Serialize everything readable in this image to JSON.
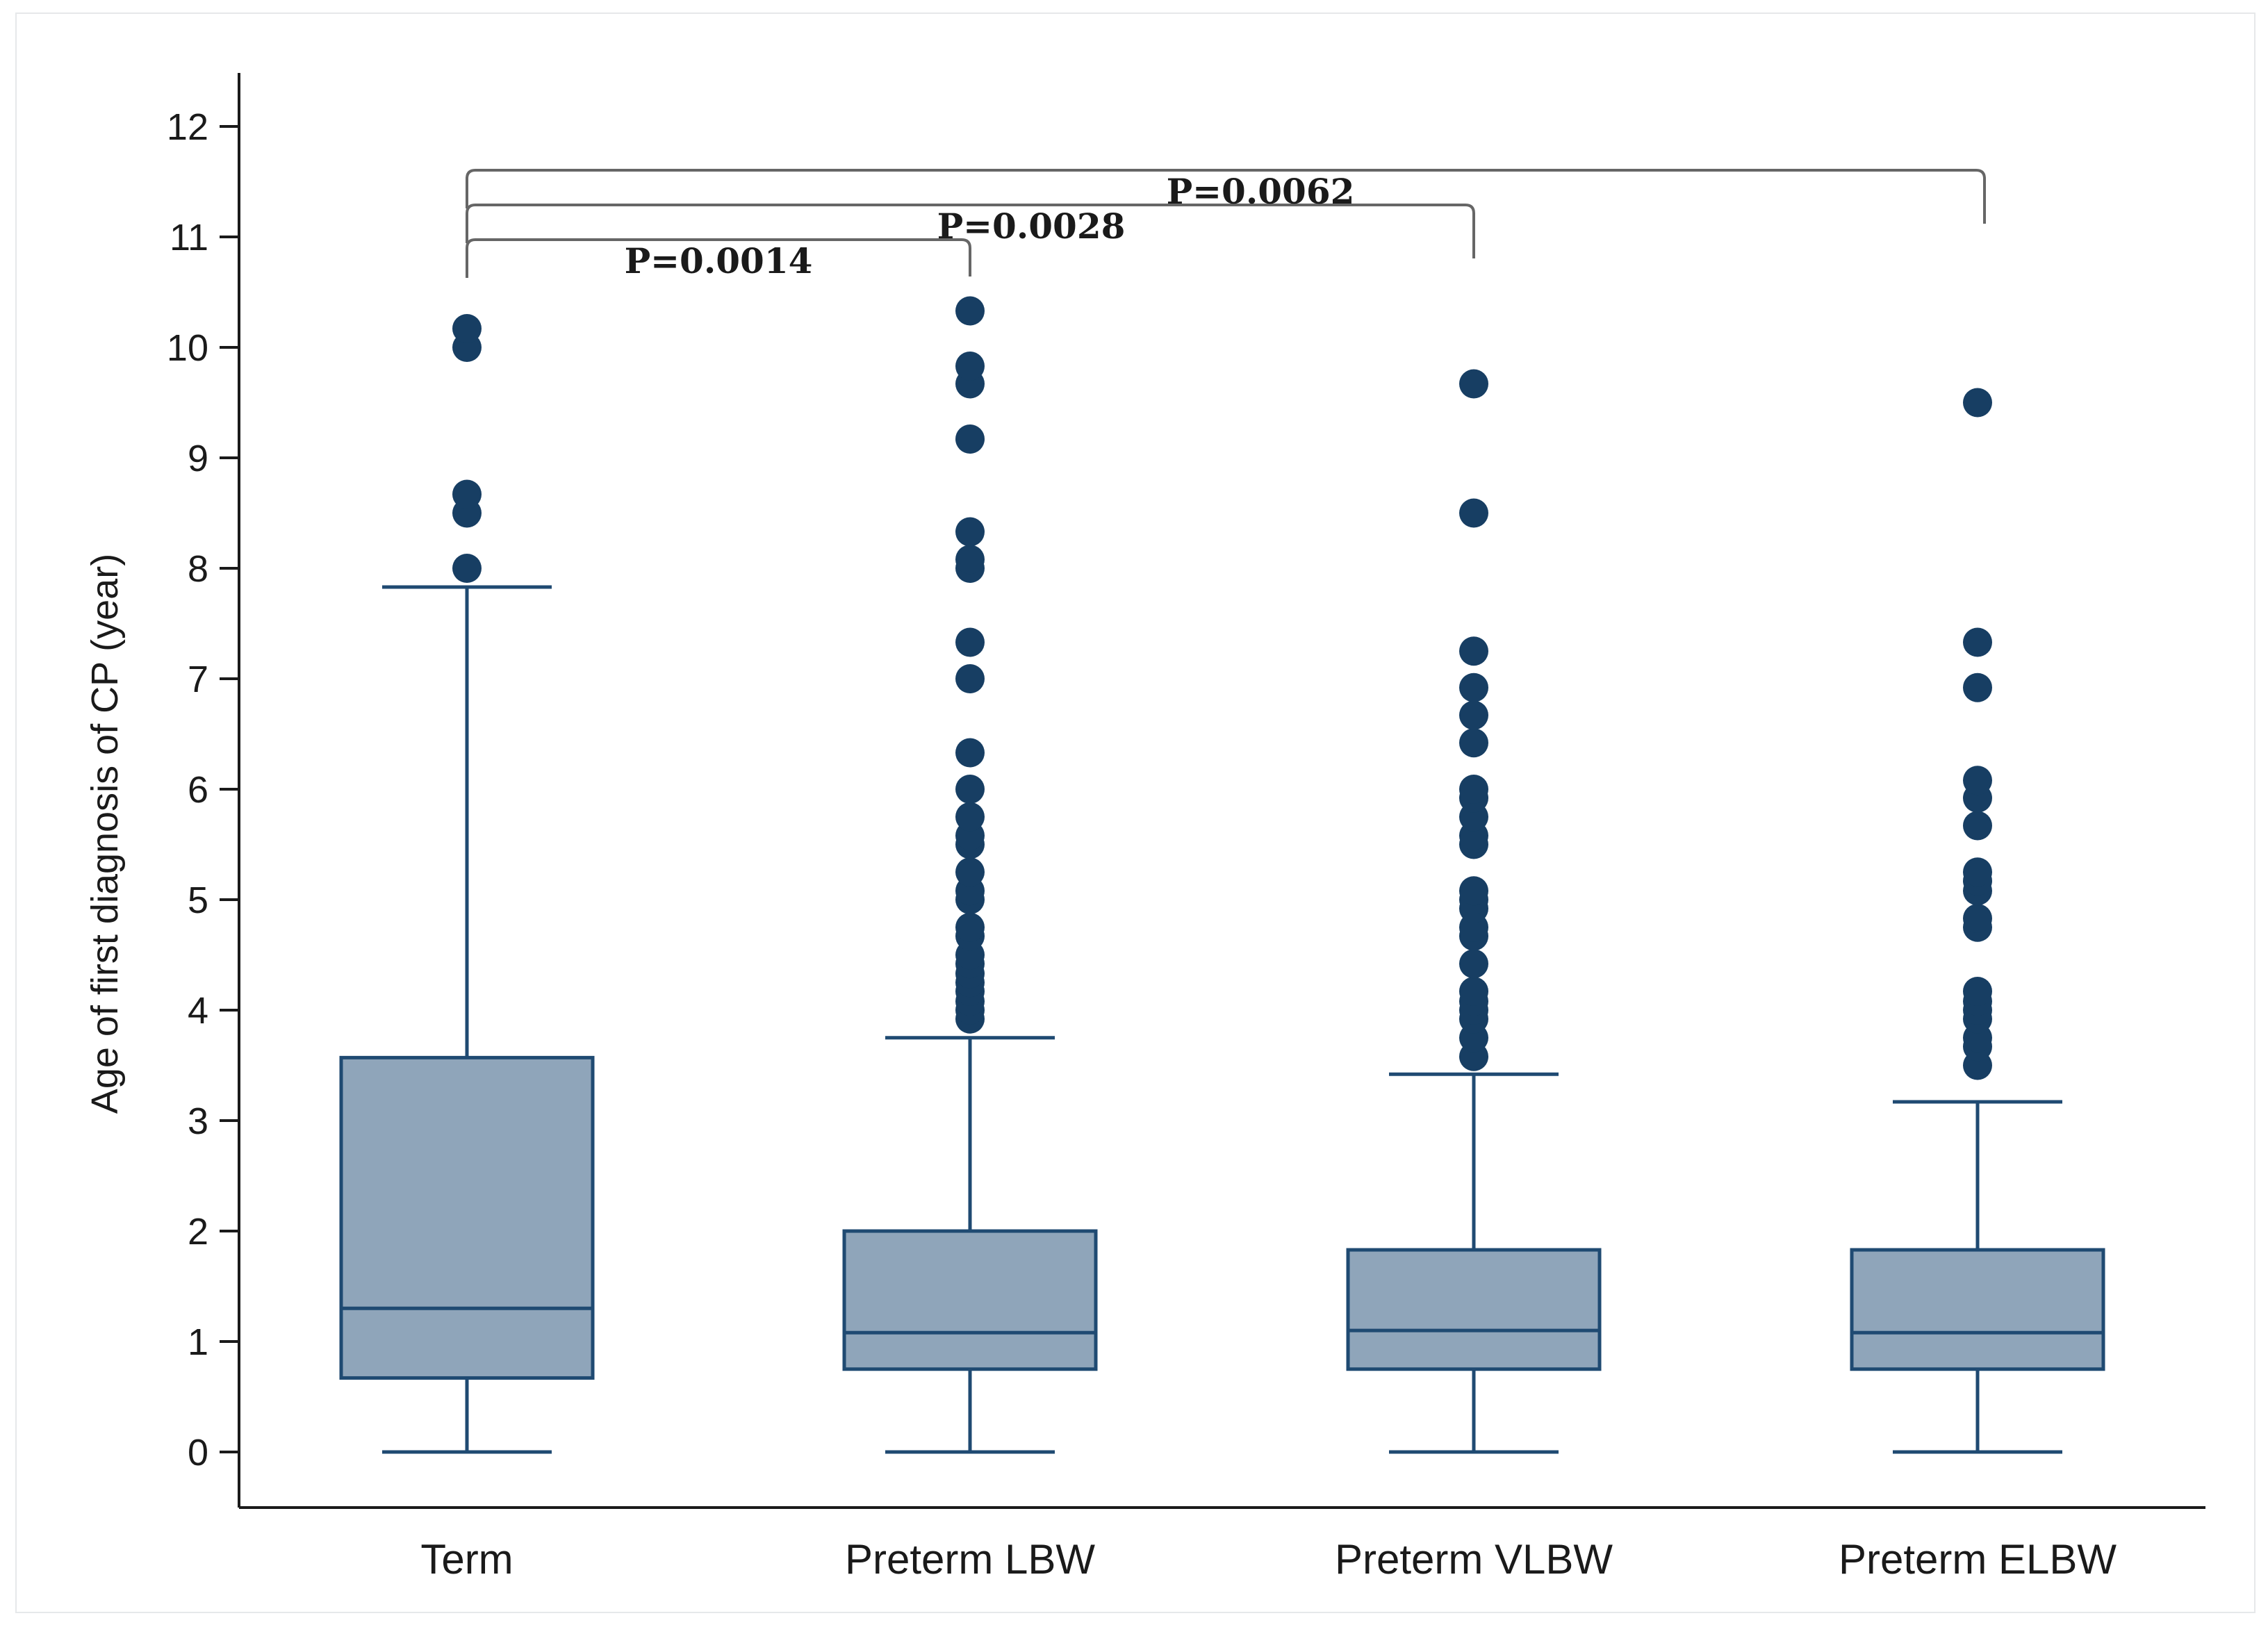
{
  "chart_data": {
    "type": "boxplot",
    "title": "",
    "xlabel": "",
    "ylabel": "Age of first diagnosis of CP (year)",
    "ylim": [
      0,
      12
    ],
    "yticks": [
      0,
      1,
      2,
      3,
      4,
      5,
      6,
      7,
      8,
      9,
      10,
      11,
      12
    ],
    "grid": false,
    "categories": [
      "Term",
      "Preterm LBW",
      "Preterm VLBW",
      "Preterm ELBW"
    ],
    "boxes": [
      {
        "name": "Term",
        "whisker_low": 0,
        "q1": 0.67,
        "median": 1.3,
        "q3": 3.57,
        "whisker_high": 7.83,
        "outliers": [
          8.0,
          8.5,
          8.67,
          10.0,
          10.17
        ]
      },
      {
        "name": "Preterm LBW",
        "whisker_low": 0,
        "q1": 0.75,
        "median": 1.08,
        "q3": 2.0,
        "whisker_high": 3.75,
        "outliers": [
          3.92,
          4.0,
          4.08,
          4.17,
          4.25,
          4.33,
          4.42,
          4.5,
          4.67,
          4.75,
          5.0,
          5.08,
          5.25,
          5.5,
          5.58,
          5.75,
          6.0,
          6.33,
          7.0,
          7.33,
          8.0,
          8.08,
          8.33,
          9.17,
          9.67,
          9.83,
          10.33
        ]
      },
      {
        "name": "Preterm VLBW",
        "whisker_low": 0,
        "q1": 0.75,
        "median": 1.1,
        "q3": 1.83,
        "whisker_high": 3.42,
        "outliers": [
          3.58,
          3.75,
          3.92,
          4.0,
          4.08,
          4.17,
          4.42,
          4.67,
          4.75,
          4.92,
          5.0,
          5.08,
          5.5,
          5.58,
          5.75,
          5.92,
          6.0,
          6.42,
          6.67,
          6.92,
          7.25,
          8.5,
          9.67
        ]
      },
      {
        "name": "Preterm ELBW",
        "whisker_low": 0,
        "q1": 0.75,
        "median": 1.08,
        "q3": 1.83,
        "whisker_high": 3.17,
        "outliers": [
          3.5,
          3.67,
          3.75,
          3.92,
          4.0,
          4.08,
          4.17,
          4.75,
          4.83,
          5.08,
          5.17,
          5.25,
          5.67,
          5.92,
          6.08,
          6.92,
          7.33,
          9.5
        ]
      }
    ],
    "comparisons": [
      {
        "from": "Term",
        "to": "Preterm LBW",
        "label": "P=0.0014"
      },
      {
        "from": "Term",
        "to": "Preterm VLBW",
        "label": "P=0.0028"
      },
      {
        "from": "Term",
        "to": "Preterm ELBW",
        "label": "P=0.0062"
      }
    ],
    "colors": {
      "box_fill": "#8fa5ba",
      "stroke": "#1f4a72",
      "outlier": "#173e63",
      "axis": "#1a1a1a",
      "bracket": "#666666"
    }
  }
}
